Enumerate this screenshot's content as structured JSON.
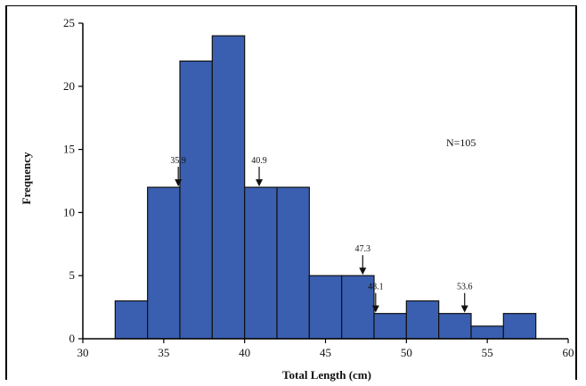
{
  "chart_data": {
    "type": "bar",
    "xlabel": "Total Length (cm)",
    "ylabel": "Frequency",
    "xlim": [
      30,
      60
    ],
    "ylim": [
      0,
      25
    ],
    "xticks": [
      "30",
      "35",
      "40",
      "45",
      "50",
      "55",
      "60"
    ],
    "yticks": [
      "0",
      "5",
      "10",
      "15",
      "20",
      "25"
    ],
    "bin_width": 2,
    "bars": [
      {
        "x0": 32,
        "x1": 34,
        "value": 3
      },
      {
        "x0": 34,
        "x1": 36,
        "value": 12
      },
      {
        "x0": 36,
        "x1": 38,
        "value": 22
      },
      {
        "x0": 38,
        "x1": 40,
        "value": 24
      },
      {
        "x0": 40,
        "x1": 42,
        "value": 12
      },
      {
        "x0": 42,
        "x1": 44,
        "value": 12
      },
      {
        "x0": 44,
        "x1": 46,
        "value": 5
      },
      {
        "x0": 46,
        "x1": 48,
        "value": 5
      },
      {
        "x0": 48,
        "x1": 50,
        "value": 2
      },
      {
        "x0": 50,
        "x1": 52,
        "value": 3
      },
      {
        "x0": 52,
        "x1": 54,
        "value": 2
      },
      {
        "x0": 54,
        "x1": 56,
        "value": 1
      },
      {
        "x0": 56,
        "x1": 58,
        "value": 2
      }
    ],
    "annotations": [
      {
        "label": "35.9",
        "x": 35.9,
        "y": 12
      },
      {
        "label": "40.9",
        "x": 40.9,
        "y": 12
      },
      {
        "label": "47.3",
        "x": 47.3,
        "y": 5
      },
      {
        "label": "48.1",
        "x": 48.1,
        "y": 2
      },
      {
        "label": "53.6",
        "x": 53.6,
        "y": 2
      }
    ],
    "text_annotation": "N=105",
    "colors": {
      "bar_fill": "#3a5fb0",
      "bar_stroke": "#111111"
    },
    "grid": false
  }
}
